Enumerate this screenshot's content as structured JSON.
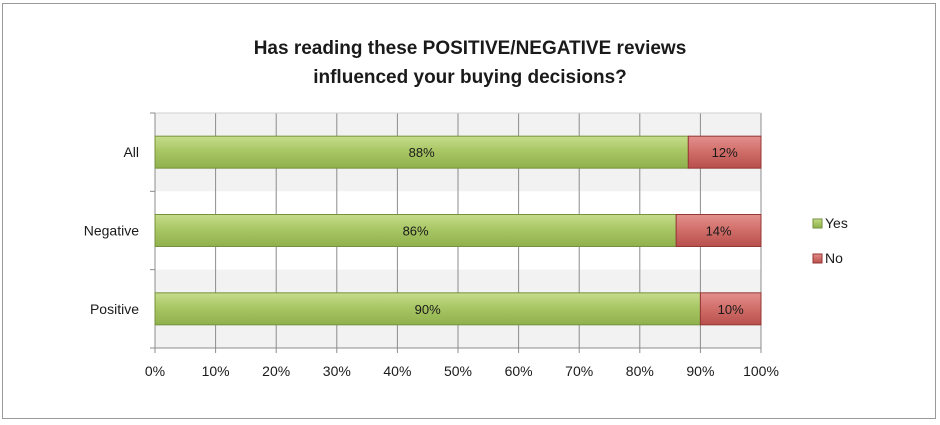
{
  "chart_data": {
    "type": "bar",
    "orientation": "horizontal",
    "stacked": true,
    "title": "Has reading these POSITIVE/NEGATIVE reviews influenced your buying decisions?",
    "title_lines": [
      "Has reading these POSITIVE/NEGATIVE reviews",
      "influenced your buying decisions?"
    ],
    "categories": [
      "All",
      "Negative",
      "Positive"
    ],
    "series": [
      {
        "name": "Yes",
        "values": [
          88,
          86,
          90
        ],
        "labels": [
          "88%",
          "86%",
          "90%"
        ],
        "color": "#9bbb59"
      },
      {
        "name": "No",
        "values": [
          12,
          14,
          10
        ],
        "labels": [
          "12%",
          "14%",
          "10%"
        ],
        "color": "#c0504d"
      }
    ],
    "xlim": [
      0,
      100
    ],
    "xticks": [
      0,
      10,
      20,
      30,
      40,
      50,
      60,
      70,
      80,
      90,
      100
    ],
    "xtick_labels": [
      "0%",
      "10%",
      "20%",
      "30%",
      "40%",
      "50%",
      "60%",
      "70%",
      "80%",
      "90%",
      "100%"
    ],
    "grid": true,
    "legend_position": "right"
  }
}
